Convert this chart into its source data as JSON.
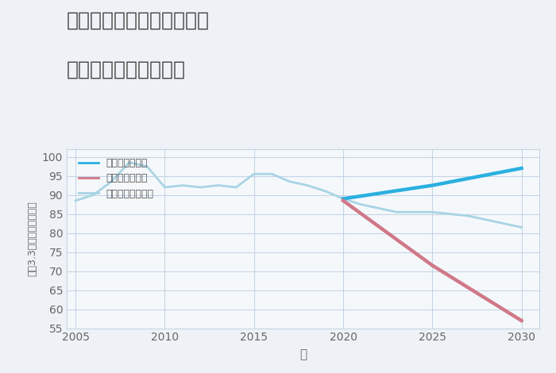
{
  "title_line1": "兵庫県姫路市広畑区本町の",
  "title_line2": "中古戸建ての価格推移",
  "xlabel": "年",
  "ylabel": "坪（3.3㎡）単価（万円）",
  "ylim": [
    55,
    102
  ],
  "xlim": [
    2004.5,
    2031
  ],
  "yticks": [
    55,
    60,
    65,
    70,
    75,
    80,
    85,
    90,
    95,
    100
  ],
  "xticks": [
    2005,
    2010,
    2015,
    2020,
    2025,
    2030
  ],
  "bg_color": "#eef2f6",
  "plot_bg_color": "#f5f8fb",
  "grid_color": "#c5d5e5",
  "normal_scenario": {
    "years": [
      2005,
      2006,
      2007,
      2008,
      2009,
      2010,
      2011,
      2012,
      2013,
      2014,
      2015,
      2016,
      2017,
      2018,
      2019,
      2020,
      2021,
      2022,
      2023,
      2024,
      2025,
      2026,
      2027,
      2028,
      2029,
      2030
    ],
    "values": [
      88.5,
      90.0,
      93.5,
      98.5,
      97.5,
      92.0,
      92.5,
      92.0,
      92.5,
      92.0,
      95.5,
      95.5,
      93.5,
      92.5,
      91.0,
      89.0,
      87.5,
      86.5,
      85.5,
      85.5,
      85.5,
      85.0,
      84.5,
      83.5,
      82.5,
      81.5
    ],
    "color": "#a8d4e4",
    "linewidth": 2.0,
    "label": "ノーマルシナリオ"
  },
  "good_scenario": {
    "years": [
      2020,
      2025,
      2030
    ],
    "values": [
      89.0,
      92.5,
      97.0
    ],
    "color": "#2ab0e0",
    "linewidth": 3.2,
    "label": "グッドシナリオ"
  },
  "bad_scenario": {
    "years": [
      2020,
      2025,
      2030
    ],
    "values": [
      88.5,
      71.5,
      57.0
    ],
    "color": "#d07888",
    "linewidth": 3.2,
    "label": "バッドシナリオ"
  },
  "title_fontsize": 18,
  "title_color": "#444444",
  "axis_label_color": "#666666",
  "tick_color": "#666666",
  "legend_text_color": "#555555",
  "legend_fontsize": 9
}
